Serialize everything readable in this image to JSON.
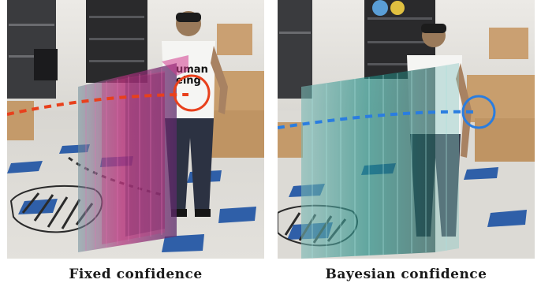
{
  "captions": {
    "left": "Fixed confidence",
    "right": "Bayesian confidence"
  },
  "shirt_text": {
    "line1": "uman",
    "line2": "eing"
  },
  "colors": {
    "floor": "#d6d4cf",
    "floor_tile": "#2f5fa8",
    "wall": "#e9e8e4",
    "shelf": "#2a2a2c",
    "box": "#c49a6a",
    "fixed_voxel": "#b0307a",
    "bayes_voxel": "#1f8a82",
    "fixed_path": "#e8401c",
    "bayes_path": "#2a7de0",
    "prediction_path": "#333333"
  }
}
